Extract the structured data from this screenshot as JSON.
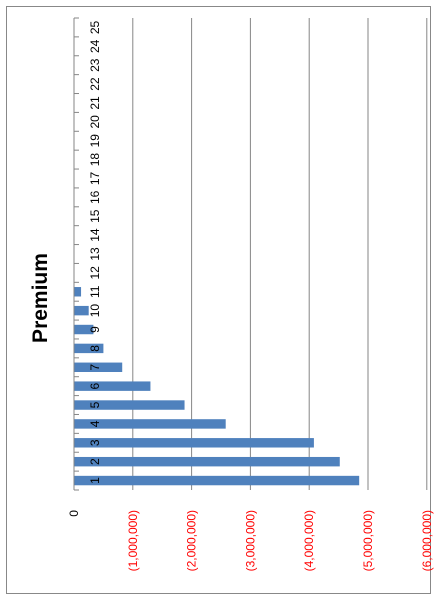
{
  "chart_data": {
    "type": "bar",
    "orientation": "rotated-90-ccw",
    "title": "Premium",
    "categories": [
      "1",
      "2",
      "3",
      "4",
      "5",
      "6",
      "7",
      "8",
      "9",
      "10",
      "11",
      "12",
      "13",
      "14",
      "15",
      "16",
      "17",
      "18",
      "19",
      "20",
      "21",
      "22",
      "23",
      "24",
      "25"
    ],
    "series": [
      {
        "values": [
          -4850000,
          -4520000,
          -4080000,
          -2580000,
          -1880000,
          -1300000,
          -820000,
          -500000,
          -330000,
          -250000,
          -120000,
          0,
          0,
          0,
          0,
          0,
          0,
          0,
          0,
          0,
          0,
          0,
          0,
          0,
          0
        ]
      }
    ],
    "ylim": [
      -6000000,
      0
    ],
    "value_ticks": [
      {
        "value": 0,
        "label": "0"
      },
      {
        "value": -1000000,
        "label": "(1,000,000)"
      },
      {
        "value": -2000000,
        "label": "(2,000,000)"
      },
      {
        "value": -3000000,
        "label": "(3,000,000)"
      },
      {
        "value": -4000000,
        "label": "(4,000,000)"
      },
      {
        "value": -5000000,
        "label": "(5,000,000)"
      },
      {
        "value": -6000000,
        "label": "(6,000,000)"
      }
    ],
    "grid": true,
    "legend": "none",
    "colors": {
      "bar": "#4f81bd",
      "negative_label": "#ff0000",
      "zero_label": "#000000",
      "grid": "#868686",
      "title": "#000000"
    }
  }
}
